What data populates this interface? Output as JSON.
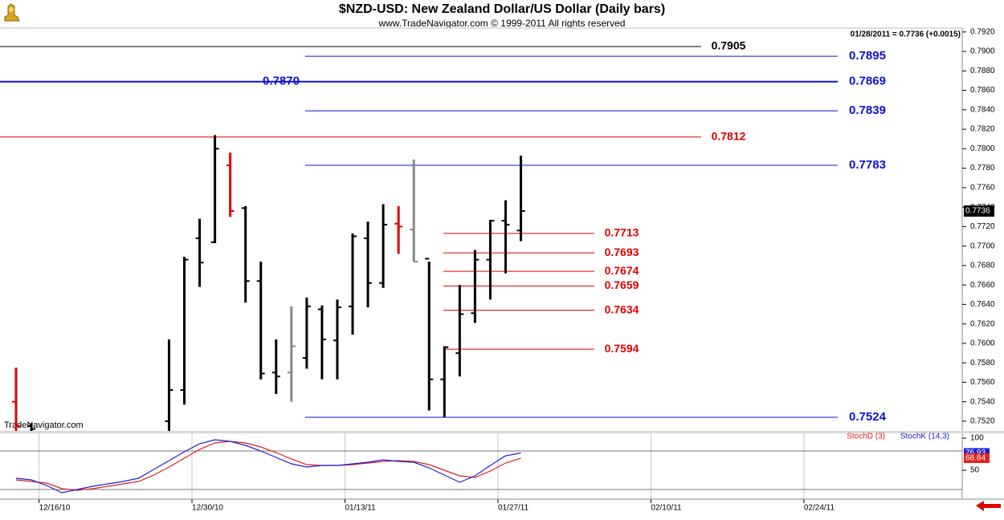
{
  "chart_data": [
    {
      "type": "ohlc",
      "title": "$NZD-USD:  New Zealand Dollar/US Dollar  (Daily bars)",
      "subtitle": "www.TradeNavigator.com © 1999-2011 All rights reserved",
      "watermark": "TradeNavigator.com",
      "header_note": "01/28/2011 = 0.7736 (+0.0015)",
      "last_label": "0.7736",
      "xlim": [
        -1.05,
        61.85
      ],
      "ylim": [
        0.751,
        0.7924
      ],
      "yticks": [
        {
          "value": 0.792,
          "label": "0.7920"
        },
        {
          "value": 0.79,
          "label": "0.7900"
        },
        {
          "value": 0.788,
          "label": "0.7880"
        },
        {
          "value": 0.786,
          "label": "0.7860"
        },
        {
          "value": 0.784,
          "label": "0.7840"
        },
        {
          "value": 0.782,
          "label": "0.7820"
        },
        {
          "value": 0.78,
          "label": "0.7800"
        },
        {
          "value": 0.778,
          "label": "0.7780"
        },
        {
          "value": 0.776,
          "label": "0.7760"
        },
        {
          "value": 0.774,
          "label": "0.7740"
        },
        {
          "value": 0.772,
          "label": "0.7720"
        },
        {
          "value": 0.77,
          "label": "0.7700"
        },
        {
          "value": 0.768,
          "label": "0.7680"
        },
        {
          "value": 0.766,
          "label": "0.7660"
        },
        {
          "value": 0.764,
          "label": "0.7640"
        },
        {
          "value": 0.762,
          "label": "0.7620"
        },
        {
          "value": 0.76,
          "label": "0.7600"
        },
        {
          "value": 0.758,
          "label": "0.7580"
        },
        {
          "value": 0.756,
          "label": "0.7560"
        },
        {
          "value": 0.754,
          "label": "0.7540"
        },
        {
          "value": 0.752,
          "label": "0.7520"
        }
      ],
      "x": [
        0,
        1,
        10,
        11,
        12,
        13,
        14,
        15,
        16,
        17,
        18,
        19,
        20,
        21,
        22,
        23,
        24,
        25,
        26,
        27,
        28,
        29,
        30,
        31,
        32,
        33
      ],
      "open": [
        0.754,
        0.7515,
        0.752,
        0.7552,
        0.7708,
        0.7704,
        0.7783,
        0.7739,
        0.7664,
        0.757,
        0.757,
        0.7585,
        0.7635,
        0.7603,
        0.7638,
        0.7708,
        0.7662,
        0.7723,
        0.7717,
        0.7687,
        0.7563,
        0.759,
        0.7631,
        0.7686,
        0.7726,
        0.7716
      ],
      "high": [
        0.7575,
        0.7518,
        0.7604,
        0.7689,
        0.7728,
        0.7814,
        0.7796,
        0.7741,
        0.7684,
        0.7604,
        0.7638,
        0.7647,
        0.7639,
        0.7645,
        0.7713,
        0.7725,
        0.7743,
        0.7741,
        0.7789,
        0.7684,
        0.7597,
        0.766,
        0.7696,
        0.7727,
        0.7747,
        0.7793
      ],
      "low": [
        0.75,
        0.75,
        0.75,
        0.7537,
        0.7658,
        0.7703,
        0.773,
        0.7642,
        0.7563,
        0.7548,
        0.754,
        0.7574,
        0.7563,
        0.7563,
        0.7609,
        0.7637,
        0.7657,
        0.7692,
        0.7684,
        0.7531,
        0.7524,
        0.7566,
        0.7621,
        0.7645,
        0.7672,
        0.7705
      ],
      "close": [
        0.7515,
        0.7512,
        0.7552,
        0.7686,
        0.7683,
        0.78,
        0.7736,
        0.7664,
        0.7569,
        0.7566,
        0.7597,
        0.7638,
        0.7604,
        0.7637,
        0.771,
        0.7662,
        0.7722,
        0.772,
        0.7684,
        0.7563,
        0.7596,
        0.763,
        0.7686,
        0.7726,
        0.7722,
        0.7736
      ],
      "colors": [
        "#e00000",
        "#000000",
        "#000000",
        "#000000",
        "#000000",
        "#000000",
        "#e00000",
        "#000000",
        "#000000",
        "#000000",
        "#888888",
        "#000000",
        "#000000",
        "#000000",
        "#000000",
        "#000000",
        "#000000",
        "#e00000",
        "#888888",
        "#000000",
        "#000000",
        "#000000",
        "#000000",
        "#000000",
        "#000000",
        "#000000"
      ],
      "levels": [
        {
          "value": 0.7905,
          "label": "0.7905",
          "color": "#000000"
        },
        {
          "value": 0.7895,
          "label": "0.7895",
          "color": "#1010d0"
        },
        {
          "value": 0.7869,
          "label": "0.7869",
          "left_label": "0.7870",
          "color": "#1010d0"
        },
        {
          "value": 0.7839,
          "label": "0.7839",
          "color": "#1010d0"
        },
        {
          "value": 0.7812,
          "label": "0.7812",
          "color": "#e00000"
        },
        {
          "value": 0.7783,
          "label": "0.7783",
          "color": "#1010d0"
        },
        {
          "value": 0.7713,
          "label": "0.7713",
          "color": "#e00000"
        },
        {
          "value": 0.7693,
          "label": "0.7693",
          "color": "#e00000"
        },
        {
          "value": 0.7674,
          "label": "0.7674",
          "color": "#e00000"
        },
        {
          "value": 0.7659,
          "label": "0.7659",
          "color": "#e00000"
        },
        {
          "value": 0.7634,
          "label": "0.7634",
          "color": "#e00000"
        },
        {
          "value": 0.7594,
          "label": "0.7594",
          "color": "#e00000"
        },
        {
          "value": 0.7524,
          "label": "0.7524",
          "color": "#1010d0"
        }
      ]
    },
    {
      "type": "line",
      "xlim": [
        -1.05,
        61.85
      ],
      "ylim": [
        5,
        107.5
      ],
      "yticks": [
        100,
        50
      ],
      "levels": [
        80,
        20
      ],
      "xticks": [
        {
          "value": 1.5,
          "label": "12/16/10"
        },
        {
          "value": 11.5,
          "label": "12/30/10"
        },
        {
          "value": 21.5,
          "label": "01/13/11"
        },
        {
          "value": 31.5,
          "label": "01/27/11"
        },
        {
          "value": 41.5,
          "label": "02/10/11"
        },
        {
          "value": 51.5,
          "label": "02/24/11"
        }
      ],
      "x": [
        0,
        1,
        2,
        3,
        4,
        5,
        6,
        7,
        8,
        9,
        10,
        11,
        12,
        13,
        14,
        15,
        16,
        17,
        18,
        19,
        20,
        21,
        22,
        23,
        24,
        25,
        26,
        27,
        28,
        29,
        30,
        31,
        32,
        33
      ],
      "series": [
        {
          "name": "StochD (3)",
          "color": "#e02020",
          "last_label": "68.84",
          "values": [
            35,
            32.5,
            30,
            21.3,
            18.8,
            21.3,
            25,
            28.8,
            32.5,
            42.5,
            55,
            68.8,
            82.5,
            92.5,
            95,
            92.5,
            86.3,
            77.5,
            67.5,
            58.8,
            57.5,
            57.5,
            58.8,
            61.3,
            63.8,
            65,
            63.8,
            58.8,
            50,
            41.3,
            38.8,
            48.8,
            61.3,
            68.84
          ]
        },
        {
          "name": "StochK (14,3)",
          "color": "#2020d0",
          "last_label": "76.93",
          "values": [
            37.5,
            35,
            26.3,
            15,
            20,
            25,
            28.8,
            32.5,
            37.5,
            51.3,
            65,
            78.8,
            91.3,
            97.5,
            95,
            88.8,
            80,
            70,
            60,
            55,
            57.5,
            57.5,
            60,
            62.5,
            66.3,
            63.8,
            62.5,
            53.8,
            42.5,
            31.3,
            41.3,
            57.5,
            72.5,
            76.93
          ]
        }
      ]
    }
  ]
}
